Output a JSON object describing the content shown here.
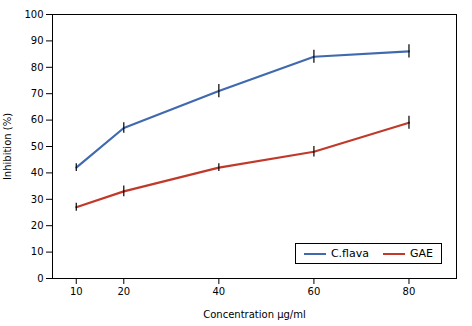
{
  "chart_data": {
    "type": "line",
    "x": [
      10,
      20,
      40,
      60,
      80
    ],
    "series": [
      {
        "name": "C.flava",
        "color": "#4169B0",
        "values": [
          42,
          57,
          71,
          84,
          86
        ],
        "errors": [
          1.5,
          2.0,
          2.5,
          2.5,
          2.5
        ]
      },
      {
        "name": "GAE",
        "color": "#C0392B",
        "values": [
          27,
          33,
          42,
          48,
          59
        ],
        "errors": [
          1.5,
          2.0,
          1.5,
          2.0,
          2.5
        ]
      }
    ],
    "xlabel": "Concentration μg/ml",
    "ylabel": "Inhibition (%)",
    "xlim": [
      5,
      90
    ],
    "ylim": [
      0,
      100
    ],
    "xticks": [
      10,
      20,
      40,
      60,
      80
    ],
    "yticks": [
      0,
      10,
      20,
      30,
      40,
      50,
      60,
      70,
      80,
      90,
      100
    ],
    "grid": false,
    "legend": "lower right"
  }
}
